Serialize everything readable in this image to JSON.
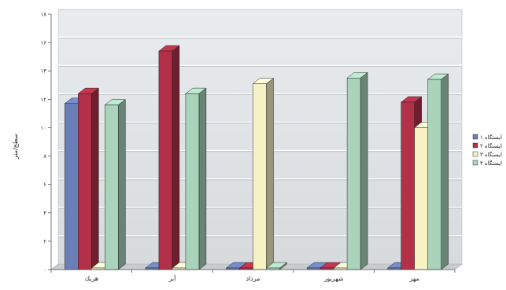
{
  "chart_data": {
    "type": "bar",
    "three_d": true,
    "categories": [
      "هريك",
      "آبر",
      "مرداد",
      "شهريور",
      "مهر"
    ],
    "series": [
      {
        "name": "ايستگاه ۱",
        "color": "#6a7fb8",
        "values": [
          11.7,
          0,
          0,
          0,
          0
        ]
      },
      {
        "name": "ايستگاه ۲",
        "color": "#b23048",
        "values": [
          12.4,
          15.4,
          0,
          0,
          11.8
        ]
      },
      {
        "name": "ايستگاه ۳",
        "color": "#f7f2c4",
        "values": [
          0,
          0,
          13.1,
          0,
          10.0
        ]
      },
      {
        "name": "ايستگاه ۴",
        "color": "#a9d3bb",
        "values": [
          11.6,
          12.4,
          0,
          13.5,
          13.4
        ]
      }
    ],
    "yticks": [
      "۰",
      "۲",
      "۴",
      "۶",
      "۸",
      "۱۰",
      "۱۲",
      "۱۴",
      "۱۶",
      "۱۸"
    ],
    "ylim": [
      0,
      18
    ],
    "ylabel": "سطح/متر",
    "grid": true,
    "legend_position": "right"
  }
}
